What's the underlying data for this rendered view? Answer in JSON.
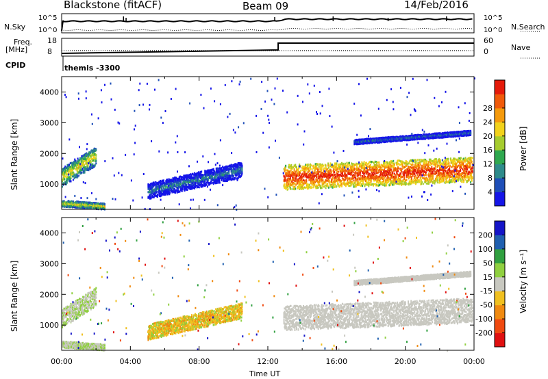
{
  "header": {
    "station": "Blackstone (fitACF)",
    "beam": "Beam 09",
    "date": "14/Feb/2016"
  },
  "side_labels": {
    "nsky": "N.Sky",
    "nsearch": "N.Search",
    "freq_line1": "Freq.",
    "freq_line2": "[MHz]",
    "nave": "Nave",
    "cpid": "CPID",
    "cpid_value": "themis -3300"
  },
  "noise_axis": {
    "left_ticks": [
      "10^5",
      "10^0"
    ],
    "right_ticks": [
      "10^5",
      "10^0"
    ]
  },
  "freq_axis": {
    "left_ticks": [
      "18",
      "8"
    ],
    "right_ticks": [
      "60",
      "0"
    ]
  },
  "chart_data": [
    {
      "type": "heatmap",
      "name": "power",
      "ylabel": "Slant Range [km]",
      "ylim": [
        180,
        4500
      ],
      "yticks": [
        1000,
        2000,
        3000,
        4000
      ],
      "xlim": [
        0,
        24
      ],
      "colorbar": {
        "label": "Power [dB]",
        "ticks": [
          "4",
          "8",
          "12",
          "16",
          "20",
          "24",
          "28"
        ],
        "colors": [
          "#1515e8",
          "#1f4fb8",
          "#2e8b8b",
          "#2fa84f",
          "#a6cc2e",
          "#f2d21b",
          "#f59a0c",
          "#f05a0a",
          "#e51a0a"
        ]
      },
      "bands": [
        {
          "t": [
            0.0,
            2.0
          ],
          "center": [
            1250,
            1950
          ],
          "width": 600,
          "value": "mid"
        },
        {
          "t": [
            5.0,
            10.5
          ],
          "center": [
            800,
            1500
          ],
          "width": 500,
          "value": "low"
        },
        {
          "t": [
            12.9,
            23.9
          ],
          "center": [
            1250,
            1500
          ],
          "width": 800,
          "value": "high"
        },
        {
          "t": [
            17.0,
            23.8
          ],
          "center": [
            2400,
            2700
          ],
          "width": 150,
          "value": "low"
        },
        {
          "t": [
            0.0,
            2.5
          ],
          "center": [
            400,
            300
          ],
          "width": 200,
          "value": "mid"
        }
      ]
    },
    {
      "type": "heatmap",
      "name": "velocity",
      "xlabel": "Time UT",
      "ylabel": "Slant Range [km]",
      "ylim": [
        180,
        4500
      ],
      "yticks": [
        1000,
        2000,
        3000,
        4000
      ],
      "xticks": [
        "00:00",
        "04:00",
        "08:00",
        "12:00",
        "16:00",
        "20:00",
        "00:00"
      ],
      "xlim": [
        0,
        24
      ],
      "colorbar": {
        "label": "Velocity [m s⁻¹]",
        "ticks": [
          "200",
          "100",
          "50",
          "15",
          "-15",
          "-50",
          "-100",
          "-200"
        ],
        "colors": [
          "#1515c8",
          "#2060b0",
          "#30a040",
          "#90d040",
          "#c8c8c0",
          "#f0c020",
          "#f08a10",
          "#f04a10",
          "#e01010"
        ]
      }
    }
  ]
}
